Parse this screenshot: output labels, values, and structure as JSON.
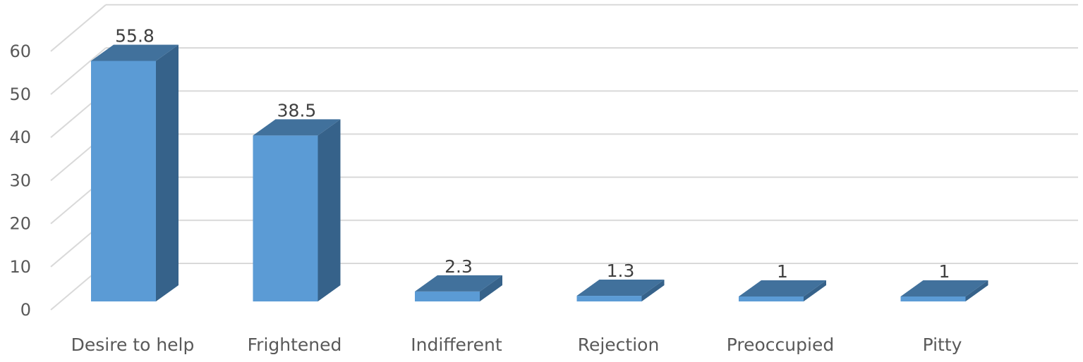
{
  "chart_data": {
    "type": "bar",
    "style": "3d-column",
    "title": "",
    "xlabel": "",
    "ylabel": "",
    "categories": [
      "Desire to help",
      "Frightened",
      "Indifferent",
      "Rejection",
      "Preoccupied",
      "Pitty"
    ],
    "values": [
      55.8,
      38.5,
      2.3,
      1.3,
      1,
      1
    ],
    "data_labels": [
      "55.8",
      "38.5",
      "2.3",
      "1.3",
      "1",
      "1"
    ],
    "ylim": [
      0,
      60
    ],
    "yticks": [
      0,
      10,
      20,
      30,
      40,
      50,
      60
    ],
    "grid": true,
    "legend": "none"
  },
  "colors": {
    "bar_front": "#5b9bd5",
    "bar_top": "#41719c",
    "bar_side": "#36628a",
    "grid": "#d9d9d9",
    "text": "#595959"
  }
}
